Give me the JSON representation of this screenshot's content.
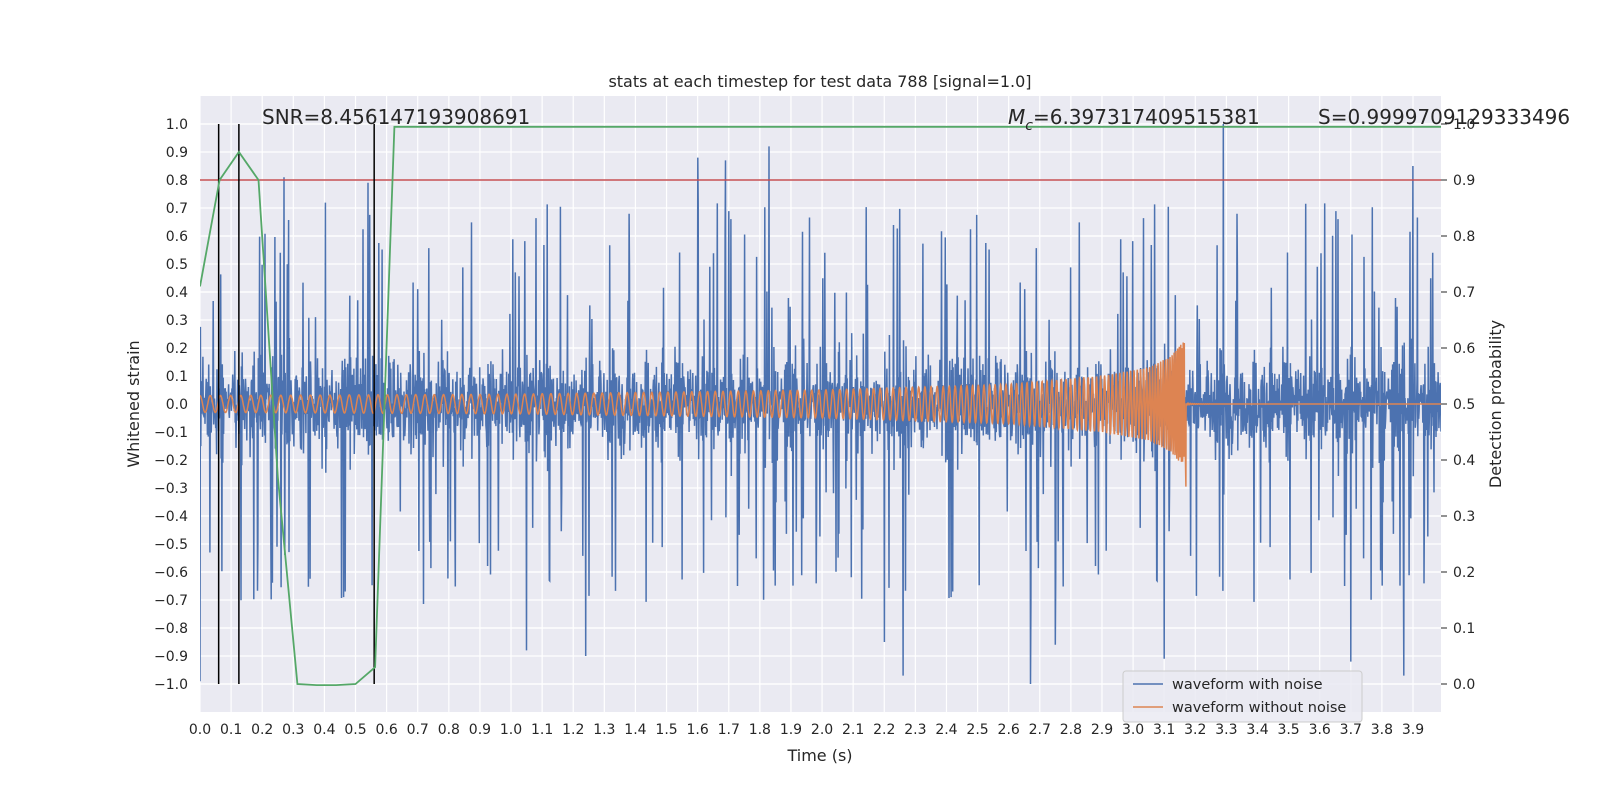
{
  "chart_data": {
    "type": "line",
    "title": "stats at each timestep for test data 788 [signal=1.0]",
    "xlabel": "Time (s)",
    "ylabel": "Whitened strain",
    "y2label": "Detection probability",
    "xlim": [
      0.0,
      3.99
    ],
    "ylim": [
      -1.1,
      1.1
    ],
    "y2lim": [
      -0.05,
      1.05
    ],
    "xticks": [
      "0.0",
      "0.1",
      "0.2",
      "0.3",
      "0.4",
      "0.5",
      "0.6",
      "0.7",
      "0.8",
      "0.9",
      "1.0",
      "1.1",
      "1.2",
      "1.3",
      "1.4",
      "1.5",
      "1.6",
      "1.7",
      "1.8",
      "1.9",
      "2.0",
      "2.1",
      "2.2",
      "2.3",
      "2.4",
      "2.5",
      "2.6",
      "2.7",
      "2.8",
      "2.9",
      "3.0",
      "3.1",
      "3.2",
      "3.3",
      "3.4",
      "3.5",
      "3.6",
      "3.7",
      "3.8",
      "3.9"
    ],
    "yticks": [
      "1.0",
      "0.9",
      "0.8",
      "0.7",
      "0.6",
      "0.5",
      "0.4",
      "0.3",
      "0.2",
      "0.1",
      "0.0",
      "−0.1",
      "−0.2",
      "−0.3",
      "−0.4",
      "−0.5",
      "−0.6",
      "−0.7",
      "−0.8",
      "−0.9",
      "−1.0"
    ],
    "y2ticks": [
      "1.0",
      "0.9",
      "0.8",
      "0.7",
      "0.6",
      "0.5",
      "0.4",
      "0.3",
      "0.2",
      "0.1",
      "0.0"
    ],
    "annotations": {
      "snr": "SNR=8.456147193908691",
      "mc_symbol": "M",
      "mc_sub": "c",
      "mc_value": "=6.397317409515381",
      "s": "S=0.9999709129333496"
    },
    "threshold_probability": 0.9,
    "vertical_markers_s": [
      0.06,
      0.125,
      0.56
    ],
    "series": [
      {
        "name": "waveform with noise",
        "color": "#4c72b0",
        "kind": "noise",
        "typical_abs_amplitude": 0.22,
        "extreme_peaks": [
          {
            "t": 0.0,
            "v": -0.99
          },
          {
            "t": 0.27,
            "v": 0.81
          },
          {
            "t": 0.54,
            "v": 0.79
          },
          {
            "t": 1.05,
            "v": -0.88
          },
          {
            "t": 1.24,
            "v": -0.9
          },
          {
            "t": 1.6,
            "v": 0.88
          },
          {
            "t": 1.69,
            "v": 0.87
          },
          {
            "t": 1.83,
            "v": 0.92
          },
          {
            "t": 2.2,
            "v": -0.85
          },
          {
            "t": 2.26,
            "v": -0.97
          },
          {
            "t": 2.67,
            "v": -1.0
          },
          {
            "t": 2.75,
            "v": -0.86
          },
          {
            "t": 3.1,
            "v": -0.91
          },
          {
            "t": 3.29,
            "v": 1.0
          },
          {
            "t": 3.7,
            "v": -0.92
          },
          {
            "t": 3.87,
            "v": -0.97
          },
          {
            "t": 3.9,
            "v": 0.85
          }
        ]
      },
      {
        "name": "waveform without noise",
        "color": "#dd8452",
        "kind": "chirp",
        "envelope": [
          [
            0.0,
            0.03
          ],
          [
            1.0,
            0.035
          ],
          [
            2.0,
            0.05
          ],
          [
            2.6,
            0.07
          ],
          [
            2.9,
            0.1
          ],
          [
            3.05,
            0.13
          ],
          [
            3.12,
            0.17
          ],
          [
            3.16,
            0.22
          ]
        ],
        "merger_time": 3.17,
        "cycles": 155
      },
      {
        "name": "detection probability",
        "color": "#55a868",
        "axis": "right",
        "x": [
          0.0,
          0.063,
          0.125,
          0.188,
          0.25,
          0.313,
          0.375,
          0.438,
          0.5,
          0.563,
          0.625,
          3.99
        ],
        "values": [
          0.71,
          0.9,
          0.95,
          0.9,
          0.37,
          0.0,
          -0.002,
          -0.002,
          0.0,
          0.03,
          0.995,
          0.995
        ]
      }
    ],
    "legend": [
      "waveform with noise",
      "waveform without noise"
    ],
    "legend_position": "lower-right",
    "grid": true,
    "threshold_color": "#c44e52"
  }
}
